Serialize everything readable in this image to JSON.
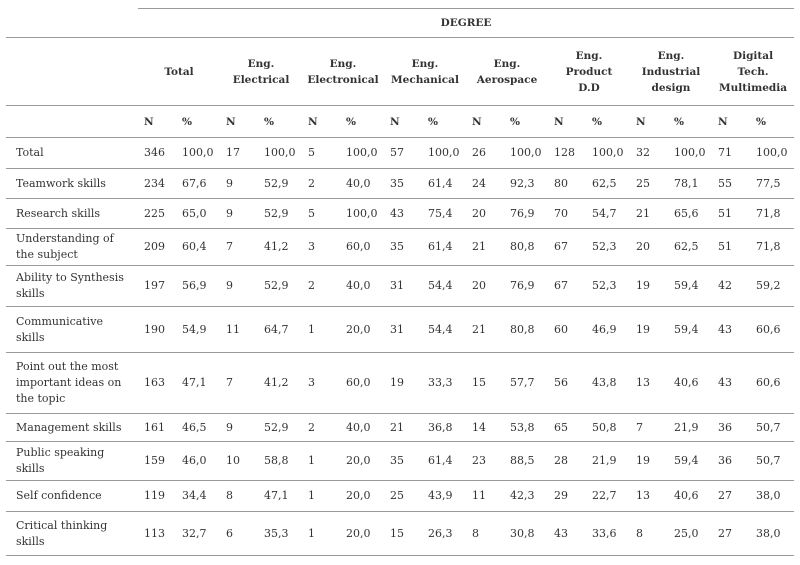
{
  "header": {
    "title": "DEGREE",
    "groups": [
      "Total",
      "Eng.\nElectrical",
      "Eng.\nElectronical",
      "Eng.\nMechanical",
      "Eng.\nAerospace",
      "Eng.\nProduct\nD.D",
      "Eng.\nIndustrial\ndesign",
      "Digital\nTech.\nMultimedia"
    ],
    "column_labels": [
      "N",
      "%"
    ]
  },
  "rows": [
    {
      "label": "Total",
      "values": [
        "346",
        "100,0",
        "17",
        "100,0",
        "5",
        "100,0",
        "57",
        "100,0",
        "26",
        "100,0",
        "128",
        "100,0",
        "32",
        "100,0",
        "71",
        "100,0"
      ]
    },
    {
      "label": "Teamwork skills",
      "values": [
        "234",
        "67,6",
        "9",
        "52,9",
        "2",
        "40,0",
        "35",
        "61,4",
        "24",
        "92,3",
        "80",
        "62,5",
        "25",
        "78,1",
        "55",
        "77,5"
      ]
    },
    {
      "label": "Research skills",
      "values": [
        "225",
        "65,0",
        "9",
        "52,9",
        "5",
        "100,0",
        "43",
        "75,4",
        "20",
        "76,9",
        "70",
        "54,7",
        "21",
        "65,6",
        "51",
        "71,8"
      ]
    },
    {
      "label": "Understanding of\nthe subject",
      "values": [
        "209",
        "60,4",
        "7",
        "41,2",
        "3",
        "60,0",
        "35",
        "61,4",
        "21",
        "80,8",
        "67",
        "52,3",
        "20",
        "62,5",
        "51",
        "71,8"
      ]
    },
    {
      "label": "Ability to Synthesis\nskills",
      "values": [
        "197",
        "56,9",
        "9",
        "52,9",
        "2",
        "40,0",
        "31",
        "54,4",
        "20",
        "76,9",
        "67",
        "52,3",
        "19",
        "59,4",
        "42",
        "59,2"
      ]
    },
    {
      "label": "Communicative\nskills",
      "values": [
        "190",
        "54,9",
        "11",
        "64,7",
        "1",
        "20,0",
        "31",
        "54,4",
        "21",
        "80,8",
        "60",
        "46,9",
        "19",
        "59,4",
        "43",
        "60,6"
      ]
    },
    {
      "label": "Point out the most\nimportant ideas on\nthe topic",
      "values": [
        "163",
        "47,1",
        "7",
        "41,2",
        "3",
        "60,0",
        "19",
        "33,3",
        "15",
        "57,7",
        "56",
        "43,8",
        "13",
        "40,6",
        "43",
        "60,6"
      ]
    },
    {
      "label": "Management skills",
      "values": [
        "161",
        "46,5",
        "9",
        "52,9",
        "2",
        "40,0",
        "21",
        "36,8",
        "14",
        "53,8",
        "65",
        "50,8",
        "7",
        "21,9",
        "36",
        "50,7"
      ]
    },
    {
      "label": "Public speaking\nskills",
      "values": [
        "159",
        "46,0",
        "10",
        "58,8",
        "1",
        "20,0",
        "35",
        "61,4",
        "23",
        "88,5",
        "28",
        "21,9",
        "19",
        "59,4",
        "36",
        "50,7"
      ]
    },
    {
      "label": "Self confidence",
      "values": [
        "119",
        "34,4",
        "8",
        "47,1",
        "1",
        "20,0",
        "25",
        "43,9",
        "11",
        "42,3",
        "29",
        "22,7",
        "13",
        "40,6",
        "27",
        "38,0"
      ]
    },
    {
      "label": "Critical thinking\nskills",
      "values": [
        "113",
        "32,7",
        "6",
        "35,3",
        "1",
        "20,0",
        "15",
        "26,3",
        "8",
        "30,8",
        "43",
        "33,6",
        "8",
        "25,0",
        "27",
        "38,0"
      ]
    }
  ]
}
